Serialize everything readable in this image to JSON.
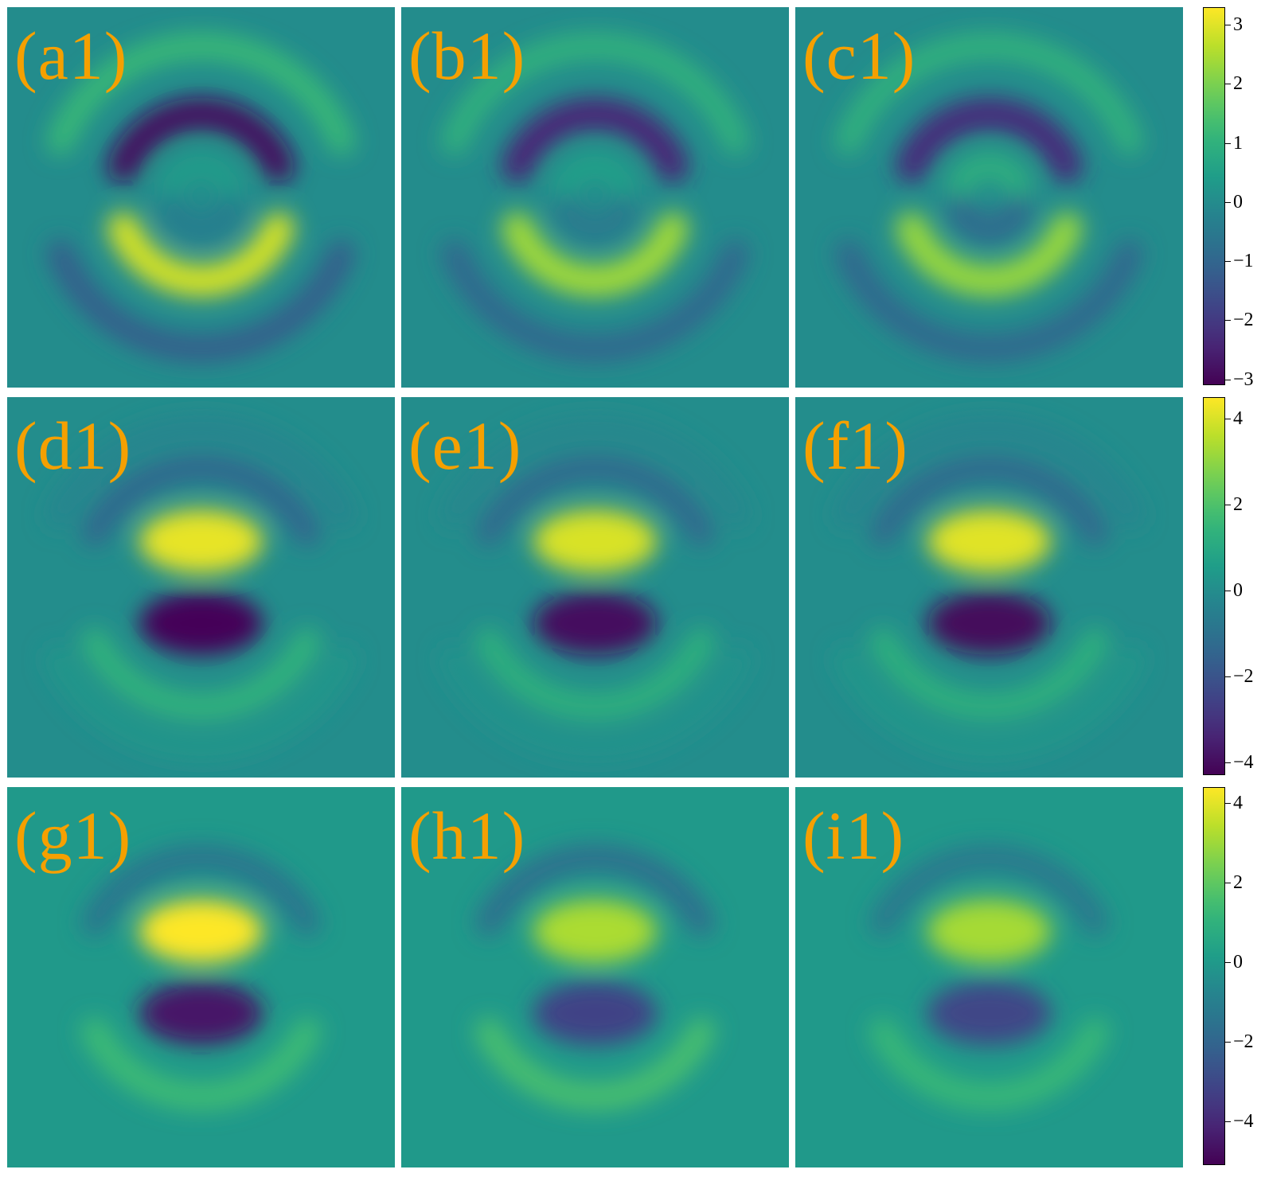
{
  "chart_data": [
    {
      "type": "heatmap",
      "row": 1,
      "colorscale": "viridis",
      "colorbar_range": [
        -3.1,
        3.3
      ],
      "colorbar_ticks": [
        3,
        2,
        1,
        0,
        -1,
        -2,
        -3
      ],
      "colorbar_tick_labels": [
        "3",
        "2",
        "1",
        "0",
        "−1",
        "−2",
        "−3"
      ],
      "panels": [
        {
          "label": "(a1)",
          "rings": [
            {
              "r": 0.04,
              "amp": 0.4
            },
            {
              "r": 0.2,
              "amp": 2.9
            },
            {
              "r": 0.4,
              "amp": 1.2
            }
          ],
          "value_range": [
            -3.0,
            3.3
          ]
        },
        {
          "label": "(b1)",
          "rings": [
            {
              "r": 0.04,
              "amp": 0.5
            },
            {
              "r": 0.2,
              "amp": 2.4
            },
            {
              "r": 0.4,
              "amp": 1.0
            }
          ],
          "value_range": [
            -2.5,
            2.5
          ]
        },
        {
          "label": "(c1)",
          "rings": [
            {
              "r": 0.04,
              "amp": 0.9
            },
            {
              "r": 0.2,
              "amp": 2.3
            },
            {
              "r": 0.4,
              "amp": 1.0
            }
          ],
          "value_range": [
            -2.5,
            2.4
          ]
        }
      ]
    },
    {
      "type": "heatmap",
      "row": 2,
      "colorscale": "viridis",
      "colorbar_range": [
        -4.3,
        4.5
      ],
      "colorbar_ticks": [
        4,
        2,
        0,
        -2,
        -4
      ],
      "colorbar_tick_labels": [
        "4",
        "2",
        "0",
        "−2",
        "−4"
      ],
      "panels": [
        {
          "label": "(d1)",
          "rings": [
            {
              "r": 0.0,
              "amp": 4.2
            },
            {
              "r": 0.28,
              "amp": 1.4
            },
            {
              "r": 0.5,
              "amp": 0.3
            }
          ],
          "value_range": [
            -4.2,
            4.2
          ]
        },
        {
          "label": "(e1)",
          "rings": [
            {
              "r": 0.0,
              "amp": 4.0
            },
            {
              "r": 0.28,
              "amp": 1.3
            },
            {
              "r": 0.5,
              "amp": 0.2
            }
          ],
          "value_range": [
            -4.0,
            4.0
          ]
        },
        {
          "label": "(f1)",
          "rings": [
            {
              "r": 0.0,
              "amp": 4.1
            },
            {
              "r": 0.28,
              "amp": 1.3
            },
            {
              "r": 0.5,
              "amp": 0.3
            }
          ],
          "value_range": [
            -4.1,
            4.1
          ]
        }
      ]
    },
    {
      "type": "heatmap",
      "row": 3,
      "colorscale": "viridis",
      "colorbar_range": [
        -5.1,
        4.4
      ],
      "colorbar_ticks": [
        4,
        2,
        0,
        -2,
        -4
      ],
      "colorbar_tick_labels": [
        "4",
        "2",
        "0",
        "−2",
        "−4"
      ],
      "panels": [
        {
          "label": "(g1)",
          "rings": [
            {
              "r": 0.0,
              "amp": 4.5
            },
            {
              "r": 0.3,
              "amp": 1.4
            }
          ],
          "value_range": [
            -4.8,
            4.3
          ]
        },
        {
          "label": "(h1)",
          "rings": [
            {
              "r": 0.0,
              "amp": 3.2
            },
            {
              "r": 0.3,
              "amp": 1.6
            }
          ],
          "value_range": [
            -3.2,
            3.2
          ]
        },
        {
          "label": "(i1)",
          "rings": [
            {
              "r": 0.0,
              "amp": 3.1
            },
            {
              "r": 0.3,
              "amp": 1.3
            }
          ],
          "value_range": [
            -3.1,
            3.1
          ]
        }
      ]
    }
  ],
  "colors": {
    "label": "#f5a000",
    "viridis": [
      "#440154",
      "#482878",
      "#3e4989",
      "#31688e",
      "#26828e",
      "#1f9e89",
      "#35b779",
      "#6ece58",
      "#b5de2b",
      "#fde725"
    ]
  }
}
